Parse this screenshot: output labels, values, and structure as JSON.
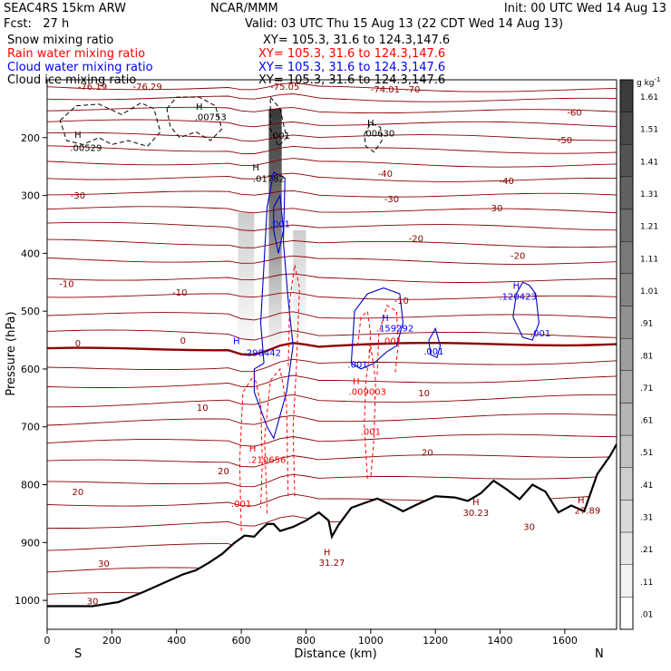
{
  "header": {
    "model": "SEAC4RS 15km ARW",
    "center": "NCAR/MMM",
    "init": "Init: 00 UTC Wed 14 Aug 13",
    "fcst": "Fcst:   27 h",
    "valid": "Valid: 03 UTC Thu 15 Aug 13 (22 CDT Wed 14 Aug 13)",
    "fields": [
      {
        "label": "Snow mixing ratio",
        "xy": "XY= 105.3, 31.6 to 124.3,147.6",
        "color": "#000000"
      },
      {
        "label": "Rain water mixing ratio",
        "xy": "XY= 105.3, 31.6 to 124.3,147.6",
        "color": "#ff0000"
      },
      {
        "label": "Cloud water mixing ratio",
        "xy": "XY= 105.3, 31.6 to 124.3,147.6",
        "color": "#0000ff"
      },
      {
        "label": "Cloud ice mixing ratio",
        "xy": "XY= 105.3, 31.6 to 124.3,147.6",
        "color": "#000000"
      }
    ]
  },
  "chart_data": {
    "type": "heatmap",
    "xlabel": "Distance (km)",
    "ylabel": "Pressure (hPa)",
    "xlim": [
      0,
      1760
    ],
    "ylim": [
      1050,
      100
    ],
    "x_ticks": [
      0,
      200,
      400,
      600,
      800,
      1000,
      1200,
      1400,
      1600
    ],
    "y_ticks": [
      200,
      300,
      400,
      500,
      600,
      700,
      800,
      900,
      1000
    ],
    "x_end_labels": {
      "left": "S",
      "right": "N"
    },
    "colorbar": {
      "unit": "g kg",
      "unit_exp": "-1",
      "labels": [
        "1.61",
        "1.51",
        "1.41",
        "1.31",
        "1.21",
        "1.11",
        "1.01",
        ".91",
        ".81",
        ".71",
        ".61",
        ".51",
        ".41",
        ".31",
        ".21",
        ".11",
        ".01"
      ]
    },
    "temperature_labels": [
      {
        "text": "-76.19",
        "x": 140,
        "p": 117,
        "color": "#8b0000"
      },
      {
        "text": "-76.29",
        "x": 310,
        "p": 117,
        "color": "#8b0000"
      },
      {
        "text": "-75.05",
        "x": 735,
        "p": 117,
        "color": "#8b0000"
      },
      {
        "text": "-74.01",
        "x": 1045,
        "p": 122,
        "color": "#8b0000"
      },
      {
        "text": "-70",
        "x": 1130,
        "p": 122,
        "color": "#8b0000"
      },
      {
        "text": "-60",
        "x": 1630,
        "p": 162,
        "color": "#8b0000"
      },
      {
        "text": "-50",
        "x": 1600,
        "p": 210,
        "color": "#8b0000"
      },
      {
        "text": "-40",
        "x": 1045,
        "p": 268,
        "color": "#8b0000"
      },
      {
        "text": "-40",
        "x": 1420,
        "p": 280,
        "color": "#8b0000"
      },
      {
        "text": "-30",
        "x": 95,
        "p": 305,
        "color": "#8b0000"
      },
      {
        "text": "-30",
        "x": 1065,
        "p": 312,
        "color": "#8b0000"
      },
      {
        "text": "-30",
        "x": 1385,
        "p": 327,
        "color": "#8b0000"
      },
      {
        "text": "-20",
        "x": 1140,
        "p": 380,
        "color": "#8b0000"
      },
      {
        "text": "-20",
        "x": 1455,
        "p": 410,
        "color": "#8b0000"
      },
      {
        "text": "-10",
        "x": 60,
        "p": 458,
        "color": "#8b0000"
      },
      {
        "text": "-10",
        "x": 410,
        "p": 473,
        "color": "#8b0000"
      },
      {
        "text": "-10",
        "x": 1095,
        "p": 487,
        "color": "#8b0000"
      },
      {
        "text": "0",
        "x": 95,
        "p": 561,
        "color": "#8b0000"
      },
      {
        "text": "0",
        "x": 420,
        "p": 556,
        "color": "#8b0000"
      },
      {
        "text": "10",
        "x": 480,
        "p": 672,
        "color": "#8b0000"
      },
      {
        "text": "10",
        "x": 1165,
        "p": 647,
        "color": "#8b0000"
      },
      {
        "text": "20",
        "x": 95,
        "p": 818,
        "color": "#8b0000"
      },
      {
        "text": "20",
        "x": 545,
        "p": 782,
        "color": "#8b0000"
      },
      {
        "text": "20",
        "x": 1175,
        "p": 750,
        "color": "#8b0000"
      },
      {
        "text": "30",
        "x": 175,
        "p": 942,
        "color": "#8b0000"
      },
      {
        "text": "30",
        "x": 140,
        "p": 1007,
        "color": "#8b0000"
      },
      {
        "text": "30",
        "x": 1490,
        "p": 878,
        "color": "#8b0000"
      }
    ],
    "extrema_labels": [
      {
        "text": "H",
        "x": 95,
        "p": 200,
        "color": "#000000"
      },
      {
        "text": ".00529",
        "x": 120,
        "p": 223,
        "color": "#000000"
      },
      {
        "text": "H",
        "x": 470,
        "p": 152,
        "color": "#000000"
      },
      {
        "text": ".00753",
        "x": 505,
        "p": 170,
        "color": "#000000"
      },
      {
        "text": "H",
        "x": 1000,
        "p": 180,
        "color": "#000000"
      },
      {
        "text": ".00630",
        "x": 1025,
        "p": 198,
        "color": "#000000"
      },
      {
        "text": ".001",
        "x": 720,
        "p": 202,
        "color": "#000000"
      },
      {
        "text": "H",
        "x": 645,
        "p": 257,
        "color": "#000000"
      },
      {
        "text": ".01782",
        "x": 685,
        "p": 276,
        "color": "#000000"
      },
      {
        "text": ".001",
        "x": 720,
        "p": 355,
        "color": "#0000ff"
      },
      {
        "text": "H",
        "x": 585,
        "p": 557,
        "color": "#0000ff"
      },
      {
        "text": ".298442",
        "x": 665,
        "p": 577,
        "color": "#0000ff"
      },
      {
        "text": "H",
        "x": 1045,
        "p": 517,
        "color": "#0000ff"
      },
      {
        "text": ".159292",
        "x": 1075,
        "p": 535,
        "color": "#0000ff"
      },
      {
        "text": "H",
        "x": 1450,
        "p": 461,
        "color": "#0000ff"
      },
      {
        "text": ".120423",
        "x": 1455,
        "p": 480,
        "color": "#0000ff"
      },
      {
        "text": ".001",
        "x": 1525,
        "p": 544,
        "color": "#0000ff"
      },
      {
        "text": ".001",
        "x": 1195,
        "p": 575,
        "color": "#0000ff"
      },
      {
        "text": ".001",
        "x": 960,
        "p": 598,
        "color": "#0000ff"
      },
      {
        "text": ".001",
        "x": 1065,
        "p": 557,
        "color": "#ff0000"
      },
      {
        "text": "H",
        "x": 955,
        "p": 627,
        "color": "#ff0000"
      },
      {
        "text": ".009003",
        "x": 990,
        "p": 645,
        "color": "#ff0000"
      },
      {
        "text": ".001",
        "x": 1000,
        "p": 714,
        "color": "#ff0000"
      },
      {
        "text": "H",
        "x": 635,
        "p": 743,
        "color": "#ff0000"
      },
      {
        "text": ".210656",
        "x": 680,
        "p": 762,
        "color": "#ff0000"
      },
      {
        "text": ".001",
        "x": 600,
        "p": 838,
        "color": "#ff0000"
      },
      {
        "text": "H",
        "x": 865,
        "p": 922,
        "color": "#8b0000"
      },
      {
        "text": "31.27",
        "x": 880,
        "p": 940,
        "color": "#8b0000"
      },
      {
        "text": "H",
        "x": 1325,
        "p": 835,
        "color": "#8b0000"
      },
      {
        "text": "30.23",
        "x": 1325,
        "p": 854,
        "color": "#8b0000"
      },
      {
        "text": "H",
        "x": 1650,
        "p": 832,
        "color": "#8b0000"
      },
      {
        "text": "27.89",
        "x": 1670,
        "p": 850,
        "color": "#8b0000"
      }
    ],
    "terrain": [
      [
        0,
        1010
      ],
      [
        140,
        1010
      ],
      [
        220,
        1003
      ],
      [
        300,
        985
      ],
      [
        380,
        965
      ],
      [
        420,
        955
      ],
      [
        460,
        948
      ],
      [
        500,
        935
      ],
      [
        540,
        920
      ],
      [
        580,
        900
      ],
      [
        610,
        888
      ],
      [
        640,
        890
      ],
      [
        660,
        878
      ],
      [
        680,
        868
      ],
      [
        700,
        868
      ],
      [
        720,
        880
      ],
      [
        760,
        873
      ],
      [
        800,
        862
      ],
      [
        840,
        848
      ],
      [
        870,
        862
      ],
      [
        880,
        890
      ],
      [
        900,
        870
      ],
      [
        940,
        840
      ],
      [
        980,
        832
      ],
      [
        1020,
        824
      ],
      [
        1050,
        832
      ],
      [
        1080,
        840
      ],
      [
        1100,
        846
      ],
      [
        1140,
        835
      ],
      [
        1200,
        820
      ],
      [
        1260,
        822
      ],
      [
        1300,
        828
      ],
      [
        1340,
        815
      ],
      [
        1380,
        793
      ],
      [
        1420,
        808
      ],
      [
        1460,
        825
      ],
      [
        1500,
        800
      ],
      [
        1540,
        812
      ],
      [
        1580,
        848
      ],
      [
        1620,
        836
      ],
      [
        1660,
        846
      ],
      [
        1700,
        782
      ],
      [
        1740,
        750
      ],
      [
        1760,
        730
      ]
    ],
    "isotherm_pressures": [
      112,
      130,
      150,
      172,
      195,
      218,
      242,
      268,
      295,
      322,
      350,
      380,
      410,
      442,
      472,
      505,
      536,
      568,
      600,
      630,
      662,
      694,
      728,
      762,
      798,
      835,
      872,
      910,
      950,
      992
    ]
  }
}
